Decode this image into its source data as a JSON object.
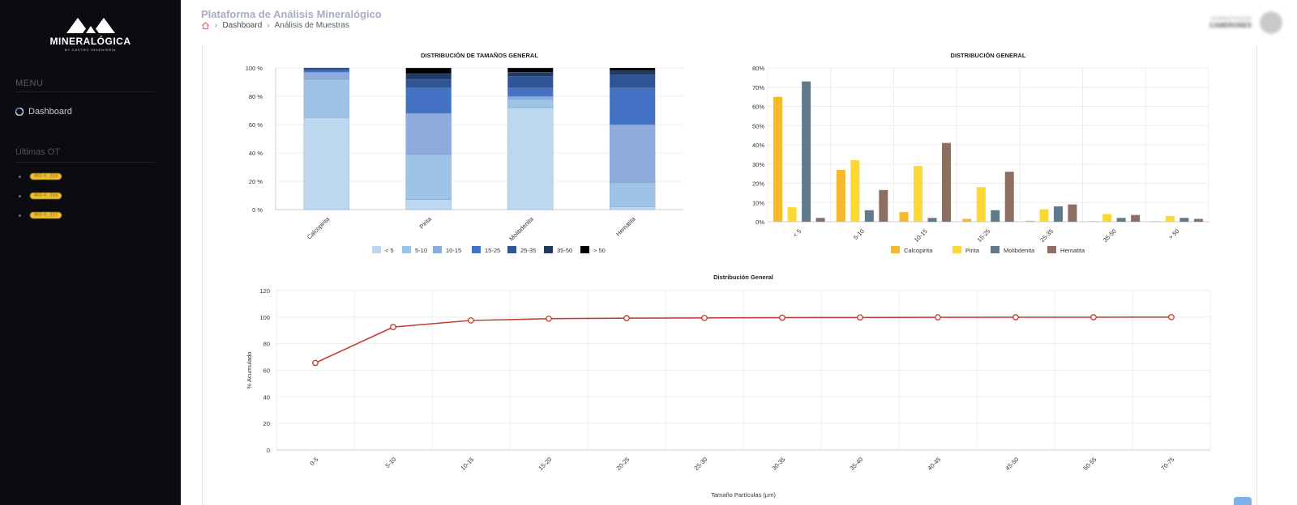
{
  "sidebar": {
    "brand": "MINERALÓGICA",
    "brand_sub": "BY CASTRO INGENIERÍA",
    "menu_label": "MENU",
    "nav": [
      {
        "label": "Dashboard",
        "icon": "dashboard-icon"
      }
    ],
    "ot_label": "Últimas OT",
    "ot_items": [
      "MO-A_219",
      "MO-A_218",
      "MO-A_217"
    ]
  },
  "header": {
    "title": "Plataforma de Análisis Mineralógico",
    "breadcrumb": [
      "Dashboard",
      "Análisis de Muestras"
    ],
    "user_role": "ADMINISTRADOR",
    "user_name": "CAMERONES"
  },
  "colors": {
    "size_classes": [
      "#bdd7ee",
      "#9dc3e6",
      "#8faadc",
      "#4472c4",
      "#2f5597",
      "#203864",
      "#000000"
    ],
    "minerals": [
      "#f4b92d",
      "#fcd835",
      "#5f7a8a",
      "#8d6e63"
    ],
    "line": "#c0392b"
  },
  "chart_data": [
    {
      "type": "bar",
      "stacked": true,
      "title": "DISTRIBUCIÓN DE TAMAÑOS GENERAL",
      "categories": [
        "Calcopirita",
        "Pirita",
        "Molibdenita",
        "Hematita"
      ],
      "series": [
        {
          "name": "< 5",
          "values": [
            65,
            7,
            72,
            2
          ]
        },
        {
          "name": "5-10",
          "values": [
            27,
            32,
            6,
            17
          ]
        },
        {
          "name": "10-15",
          "values": [
            5,
            29,
            2,
            41
          ]
        },
        {
          "name": "15-25",
          "values": [
            1,
            18,
            6,
            26
          ]
        },
        {
          "name": "25-35",
          "values": [
            1,
            6,
            8,
            9
          ]
        },
        {
          "name": "35-50",
          "values": [
            1,
            4,
            3,
            3
          ]
        },
        {
          "name": "> 50",
          "values": [
            0,
            4,
            3,
            2
          ]
        }
      ],
      "ylim": [
        0,
        100
      ],
      "yticks": [
        "0 %",
        "20 %",
        "40 %",
        "60 %",
        "80 %",
        "100 %"
      ],
      "legend": "bottom"
    },
    {
      "type": "bar",
      "title": "DISTRIBUCIÓN GENERAL",
      "categories": [
        "< 5",
        "5-10",
        "10-15",
        "15-25",
        "25-35",
        "35-50",
        "> 50"
      ],
      "series": [
        {
          "name": "Calcopirita",
          "values": [
            65,
            27,
            5,
            1.5,
            0.5,
            0.3,
            0.3
          ]
        },
        {
          "name": "Pirita",
          "values": [
            7.5,
            32,
            29,
            18,
            6.5,
            4,
            3
          ]
        },
        {
          "name": "Molibdenita",
          "values": [
            73,
            6,
            2,
            6,
            8,
            2,
            2
          ]
        },
        {
          "name": "Hematita",
          "values": [
            2,
            16.5,
            41,
            26,
            9,
            3.5,
            1.5
          ]
        }
      ],
      "ylim": [
        0,
        80
      ],
      "yticks": [
        "0%",
        "10%",
        "20%",
        "30%",
        "40%",
        "50%",
        "60%",
        "70%",
        "80%"
      ],
      "legend": "bottom"
    },
    {
      "type": "line",
      "title": "Distribución General",
      "x": [
        "0-5",
        "5-10",
        "10-15",
        "15-20",
        "20-25",
        "25-30",
        "30-35",
        "35-40",
        "40-45",
        "45-50",
        "50-55",
        "70-75"
      ],
      "values": [
        65.5,
        92.5,
        97.5,
        98.8,
        99.2,
        99.4,
        99.6,
        99.7,
        99.8,
        99.9,
        99.9,
        100
      ],
      "xlabel": "Tamaño Partículas (µm)",
      "ylabel": "% Acumulado",
      "ylim": [
        0,
        120
      ],
      "yticks": [
        "0",
        "20",
        "40",
        "60",
        "80",
        "100",
        "120"
      ]
    }
  ]
}
